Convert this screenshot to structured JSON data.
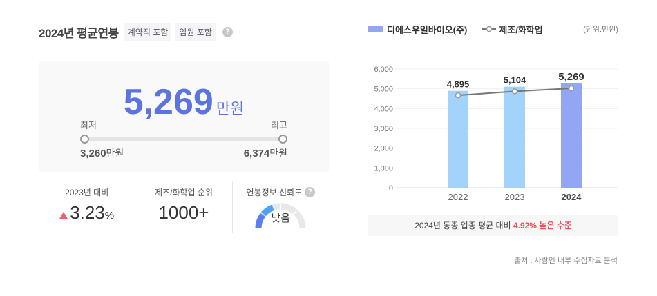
{
  "header": {
    "title": "2024년 평균연봉",
    "tags": [
      "계약직 포함",
      "임원 포함"
    ],
    "help_icon": "?"
  },
  "salary": {
    "value": "5,269",
    "unit": "만원",
    "min_label": "최저",
    "max_label": "최고",
    "min_value": "3,260",
    "max_value": "6,374",
    "range_unit": "만원"
  },
  "stats": [
    {
      "label": "2023년 대비",
      "value": "3.23",
      "suffix": "%",
      "trend": "up",
      "trend_color": "#f06070"
    },
    {
      "label": "제조/화학업 순위",
      "value": "1000+"
    },
    {
      "label": "연봉정보 신뢰도",
      "value": "낮음",
      "help_icon": "?"
    }
  ],
  "legend": {
    "company": "디에스우일바이오(주)",
    "industry": "제조/화학업",
    "unit_note": "(단위:만원)"
  },
  "summary": {
    "prefix": "2024년 동종 업종 평균 대비 ",
    "highlight": "4.92% 높은 수준"
  },
  "source": "출처 : 사람인 내부 수집자료 분석",
  "colors": {
    "accent": "#5b74e0",
    "bar_past": "#a3d3fb",
    "bar_current": "#93a6f6",
    "line": "#777777",
    "highlight": "#f0505e"
  },
  "chart_data": {
    "type": "bar",
    "title": "",
    "categories": [
      "2022",
      "2023",
      "2024"
    ],
    "series": [
      {
        "name": "디에스우일바이오(주)",
        "type": "bar",
        "values": [
          4895,
          5104,
          5269
        ]
      },
      {
        "name": "제조/화학업",
        "type": "line",
        "values": [
          4670,
          4870,
          5022
        ]
      }
    ],
    "data_labels": [
      "4,895",
      "5,104",
      "5,269"
    ],
    "yticks": [
      "0",
      "1,000",
      "2,000",
      "3,000",
      "4,000",
      "5,000",
      "6,000"
    ],
    "ylim": [
      0,
      6000
    ],
    "xlabel": "",
    "ylabel": "",
    "unit": "만원",
    "grid": true,
    "legend_position": "top"
  }
}
